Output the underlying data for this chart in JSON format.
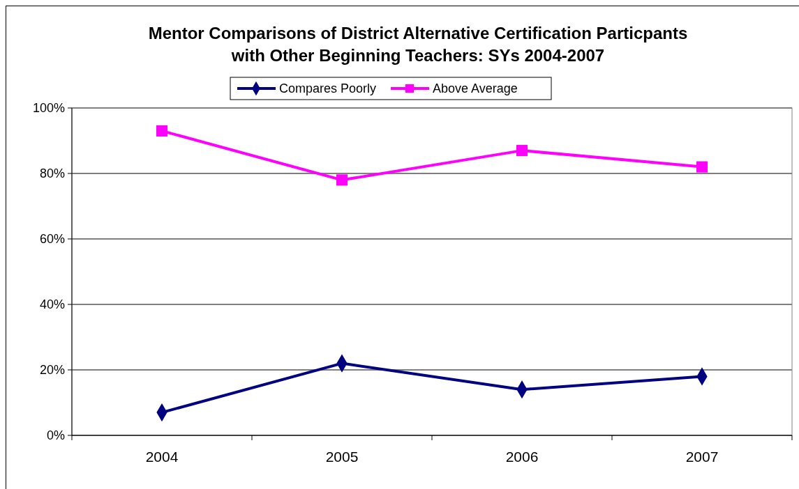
{
  "chart_data": {
    "type": "line",
    "title": "Mentor Comparisons of District Alternative Certification Particpants\nwith Other Beginning Teachers: SYs 2004-2007",
    "categories": [
      "2004",
      "2005",
      "2006",
      "2007"
    ],
    "series": [
      {
        "name": "Compares Poorly",
        "color": "#000080",
        "marker": "diamond",
        "values": [
          7,
          22,
          14,
          18
        ]
      },
      {
        "name": "Above Average",
        "color": "#ff00ff",
        "marker": "square",
        "values": [
          93,
          78,
          87,
          82
        ]
      }
    ],
    "ylim": [
      0,
      100
    ],
    "yticks": [
      {
        "value": 0,
        "label": "0%"
      },
      {
        "value": 20,
        "label": "20%"
      },
      {
        "value": 40,
        "label": "40%"
      },
      {
        "value": 60,
        "label": "60%"
      },
      {
        "value": 80,
        "label": "80%"
      },
      {
        "value": 100,
        "label": "100%"
      }
    ],
    "grid": "y",
    "legend": "top",
    "line_style": "solid"
  }
}
